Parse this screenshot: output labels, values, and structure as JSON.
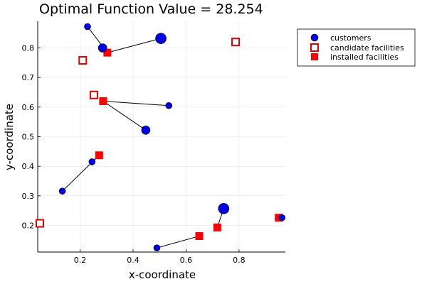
{
  "chart_data": {
    "type": "scatter",
    "title": "Optimal Function Value = 28.254",
    "xlabel": "x-coordinate",
    "ylabel": "y-coordinate",
    "xlim": [
      0.04,
      0.975
    ],
    "ylim": [
      0.11,
      0.89
    ],
    "xticks": [
      0.2,
      0.4,
      0.6,
      0.8
    ],
    "yticks": [
      0.2,
      0.3,
      0.4,
      0.5,
      0.6,
      0.7,
      0.8
    ],
    "xtick_labels": [
      "0.2",
      "0.4",
      "0.6",
      "0.8"
    ],
    "ytick_labels": [
      "0.2",
      "0.3",
      "0.4",
      "0.5",
      "0.6",
      "0.7",
      "0.8"
    ],
    "grid": true,
    "legend_position": "outside-top-right",
    "legend": [
      {
        "label": "customers",
        "marker": "circle-filled"
      },
      {
        "label": "candidate facilities",
        "marker": "square-open"
      },
      {
        "label": "installed facilities",
        "marker": "square-filled"
      }
    ],
    "colors": {
      "customers": "#0000e6",
      "candidate": "#e00000",
      "installed": "#ff0000",
      "assignment": "#000000"
    },
    "customers": [
      {
        "x": 0.228,
        "y": 0.872,
        "size": "small"
      },
      {
        "x": 0.285,
        "y": 0.8,
        "size": "medium"
      },
      {
        "x": 0.505,
        "y": 0.832,
        "size": "large"
      },
      {
        "x": 0.535,
        "y": 0.605,
        "size": "small"
      },
      {
        "x": 0.448,
        "y": 0.522,
        "size": "medium"
      },
      {
        "x": 0.245,
        "y": 0.415,
        "size": "small"
      },
      {
        "x": 0.133,
        "y": 0.316,
        "size": "small"
      },
      {
        "x": 0.742,
        "y": 0.257,
        "size": "large"
      },
      {
        "x": 0.962,
        "y": 0.226,
        "size": "small"
      },
      {
        "x": 0.49,
        "y": 0.124,
        "size": "small"
      }
    ],
    "candidate_facilities": [
      {
        "x": 0.787,
        "y": 0.82
      },
      {
        "x": 0.21,
        "y": 0.758
      },
      {
        "x": 0.252,
        "y": 0.641
      },
      {
        "x": 0.048,
        "y": 0.207
      }
    ],
    "installed_facilities": [
      {
        "x": 0.303,
        "y": 0.784
      },
      {
        "x": 0.287,
        "y": 0.62
      },
      {
        "x": 0.272,
        "y": 0.437
      },
      {
        "x": 0.718,
        "y": 0.193
      },
      {
        "x": 0.65,
        "y": 0.164
      },
      {
        "x": 0.95,
        "y": 0.226
      }
    ],
    "assignments": [
      {
        "customer": 0,
        "facility": 0
      },
      {
        "customer": 1,
        "facility": 0
      },
      {
        "customer": 2,
        "facility": 0
      },
      {
        "customer": 3,
        "facility": 1
      },
      {
        "customer": 4,
        "facility": 1
      },
      {
        "customer": 5,
        "facility": 2
      },
      {
        "customer": 6,
        "facility": 2
      },
      {
        "customer": 7,
        "facility": 3
      },
      {
        "customer": 8,
        "facility": 5
      },
      {
        "customer": 9,
        "facility": 4
      }
    ]
  }
}
